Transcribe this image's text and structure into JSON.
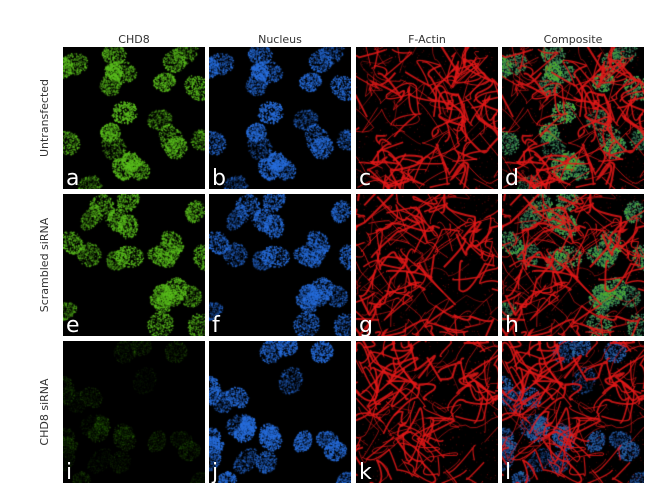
{
  "columns": [
    "CHD8",
    "Nucleus",
    "F-Actin",
    "Composite"
  ],
  "rows": [
    "Untransfected",
    "Scrambled siRNA",
    "CHD8 siRNA"
  ],
  "panel_letters": [
    [
      "a",
      "b",
      "c",
      "d"
    ],
    [
      "e",
      "f",
      "g",
      "h"
    ],
    [
      "i",
      "j",
      "k",
      "l"
    ]
  ],
  "channel_colors": {
    "CHD8": "#4caf1a",
    "Nucleus": "#2a6fd6",
    "F-Actin": "#e01818"
  },
  "chd8_signal_level": [
    1.0,
    1.0,
    0.12
  ]
}
